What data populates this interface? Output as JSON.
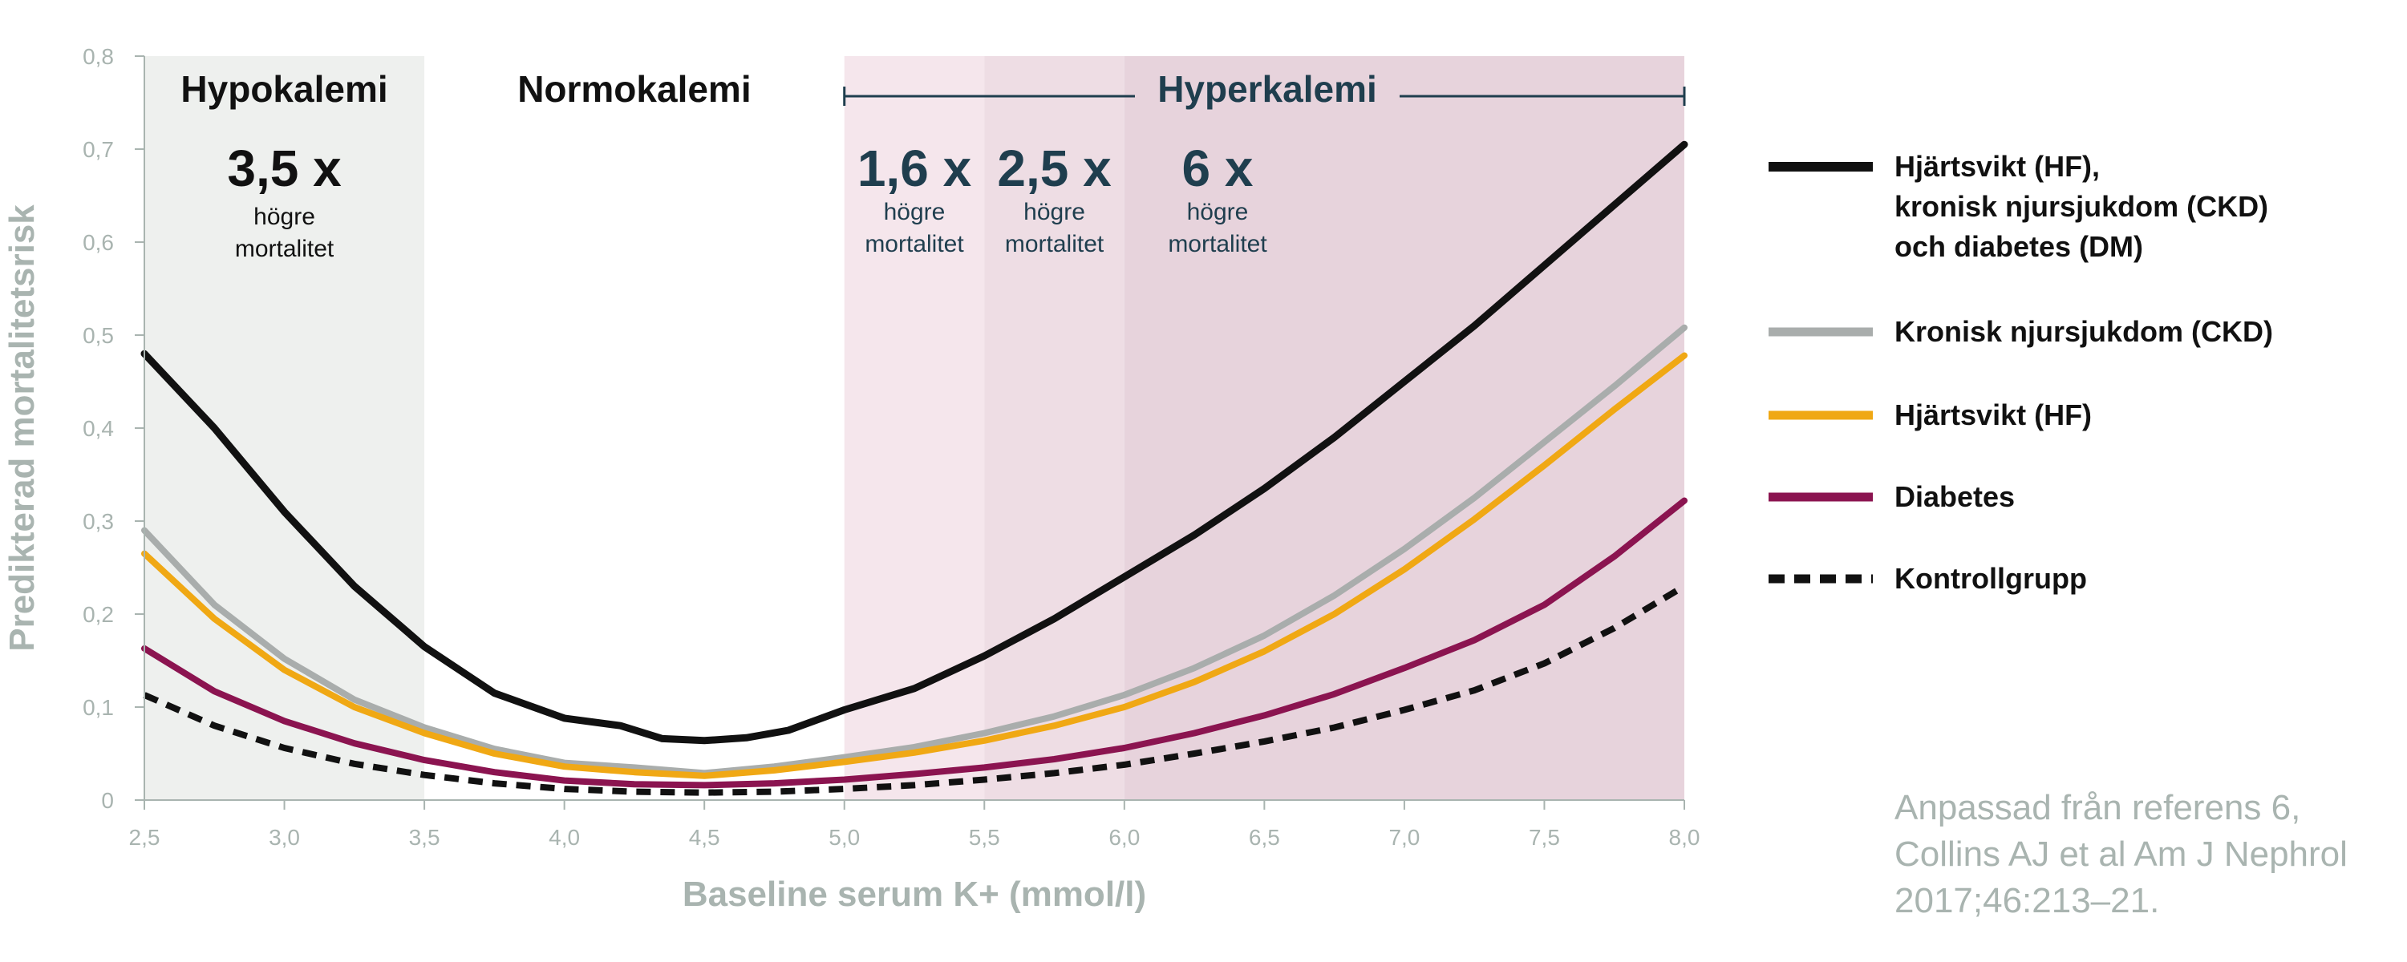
{
  "chart_data": {
    "type": "line",
    "xlabel": "Baseline serum K+ (mmol/l)",
    "ylabel": "Predikterad mortalitetsrisk",
    "xlim": [
      2.5,
      8.0
    ],
    "ylim": [
      0,
      0.8
    ],
    "x_ticks": [
      "2,5",
      "3,0",
      "3,5",
      "4,0",
      "4,5",
      "5,0",
      "5,5",
      "6,0",
      "6,5",
      "7,0",
      "7,5",
      "8,0"
    ],
    "y_ticks": [
      "0",
      "0,1",
      "0,2",
      "0,3",
      "0,4",
      "0,5",
      "0,6",
      "0,7",
      "0,8"
    ],
    "grid": false,
    "legend_position": "right",
    "zones": [
      {
        "label": "Hypokalemi",
        "from": 2.5,
        "to": 3.5,
        "color": "#eef0ee",
        "multiplier": "3,5 x",
        "note_line1": "högre",
        "note_line2": "mortalitet"
      },
      {
        "label": "Normokalemi",
        "from": 3.5,
        "to": 5.0
      }
    ],
    "hyper": {
      "label": "Hyperkalemi",
      "from": 5.0,
      "to": 8.0,
      "bands": [
        {
          "from": 5.0,
          "to": 5.5,
          "color": "#f5e6ec",
          "multiplier": "1,6 x",
          "note_line1": "högre",
          "note_line2": "mortalitet"
        },
        {
          "from": 5.5,
          "to": 6.0,
          "color": "#eedde4",
          "multiplier": "2,5 x",
          "note_line1": "högre",
          "note_line2": "mortalitet"
        },
        {
          "from": 6.0,
          "to": 8.0,
          "color": "#e7d3dc",
          "multiplier": "6 x",
          "note_line1": "högre",
          "note_line2": "mortalitet"
        }
      ]
    },
    "series": [
      {
        "name": "Hjärtsvikt (HF), kronisk njursjukdom (CKD) och diabetes (DM)",
        "legend_lines": [
          "Hjärtsvikt (HF),",
          "kronisk njursjukdom (CKD)",
          "och diabetes (DM)"
        ],
        "color": "#111111",
        "dashed": false,
        "points": [
          [
            2.5,
            0.48
          ],
          [
            2.75,
            0.4
          ],
          [
            3.0,
            0.31
          ],
          [
            3.25,
            0.23
          ],
          [
            3.5,
            0.165
          ],
          [
            3.75,
            0.115
          ],
          [
            4.0,
            0.088
          ],
          [
            4.2,
            0.08
          ],
          [
            4.35,
            0.066
          ],
          [
            4.5,
            0.064
          ],
          [
            4.65,
            0.067
          ],
          [
            4.8,
            0.075
          ],
          [
            5.0,
            0.097
          ],
          [
            5.25,
            0.12
          ],
          [
            5.5,
            0.155
          ],
          [
            5.75,
            0.195
          ],
          [
            6.0,
            0.24
          ],
          [
            6.25,
            0.285
          ],
          [
            6.5,
            0.335
          ],
          [
            6.75,
            0.39
          ],
          [
            7.0,
            0.45
          ],
          [
            7.25,
            0.51
          ],
          [
            7.5,
            0.575
          ],
          [
            7.75,
            0.64
          ],
          [
            8.0,
            0.705
          ]
        ]
      },
      {
        "name": "Kronisk njursjukdom (CKD)",
        "legend_lines": [
          "Kronisk njursjukdom (CKD)"
        ],
        "color": "#a9adac",
        "dashed": false,
        "points": [
          [
            2.5,
            0.29
          ],
          [
            2.75,
            0.21
          ],
          [
            3.0,
            0.152
          ],
          [
            3.25,
            0.108
          ],
          [
            3.5,
            0.078
          ],
          [
            3.75,
            0.055
          ],
          [
            4.0,
            0.04
          ],
          [
            4.25,
            0.035
          ],
          [
            4.5,
            0.029
          ],
          [
            4.75,
            0.036
          ],
          [
            5.0,
            0.046
          ],
          [
            5.25,
            0.057
          ],
          [
            5.5,
            0.072
          ],
          [
            5.75,
            0.09
          ],
          [
            6.0,
            0.113
          ],
          [
            6.25,
            0.142
          ],
          [
            6.5,
            0.177
          ],
          [
            6.75,
            0.22
          ],
          [
            7.0,
            0.27
          ],
          [
            7.25,
            0.325
          ],
          [
            7.5,
            0.385
          ],
          [
            7.75,
            0.445
          ],
          [
            8.0,
            0.508
          ]
        ]
      },
      {
        "name": "Hjärtsvikt (HF)",
        "legend_lines": [
          "Hjärtsvikt (HF)"
        ],
        "color": "#f0a814",
        "dashed": false,
        "points": [
          [
            2.5,
            0.265
          ],
          [
            2.75,
            0.195
          ],
          [
            3.0,
            0.14
          ],
          [
            3.25,
            0.1
          ],
          [
            3.5,
            0.072
          ],
          [
            3.75,
            0.05
          ],
          [
            4.0,
            0.036
          ],
          [
            4.25,
            0.03
          ],
          [
            4.5,
            0.026
          ],
          [
            4.75,
            0.032
          ],
          [
            5.0,
            0.041
          ],
          [
            5.25,
            0.051
          ],
          [
            5.5,
            0.064
          ],
          [
            5.75,
            0.08
          ],
          [
            6.0,
            0.1
          ],
          [
            6.25,
            0.127
          ],
          [
            6.5,
            0.16
          ],
          [
            6.75,
            0.2
          ],
          [
            7.0,
            0.248
          ],
          [
            7.25,
            0.302
          ],
          [
            7.5,
            0.36
          ],
          [
            7.75,
            0.42
          ],
          [
            8.0,
            0.478
          ]
        ]
      },
      {
        "name": "Diabetes",
        "legend_lines": [
          "Diabetes"
        ],
        "color": "#8b1450",
        "dashed": false,
        "points": [
          [
            2.5,
            0.163
          ],
          [
            2.75,
            0.117
          ],
          [
            3.0,
            0.085
          ],
          [
            3.25,
            0.061
          ],
          [
            3.5,
            0.043
          ],
          [
            3.75,
            0.03
          ],
          [
            4.0,
            0.021
          ],
          [
            4.25,
            0.017
          ],
          [
            4.5,
            0.016
          ],
          [
            4.75,
            0.018
          ],
          [
            5.0,
            0.022
          ],
          [
            5.25,
            0.028
          ],
          [
            5.5,
            0.035
          ],
          [
            5.75,
            0.044
          ],
          [
            6.0,
            0.056
          ],
          [
            6.25,
            0.072
          ],
          [
            6.5,
            0.091
          ],
          [
            6.75,
            0.114
          ],
          [
            7.0,
            0.142
          ],
          [
            7.25,
            0.172
          ],
          [
            7.5,
            0.21
          ],
          [
            7.75,
            0.262
          ],
          [
            8.0,
            0.322
          ]
        ]
      },
      {
        "name": "Kontrollgrupp",
        "legend_lines": [
          "Kontrollgrupp"
        ],
        "color": "#111111",
        "dashed": true,
        "points": [
          [
            2.5,
            0.113
          ],
          [
            2.75,
            0.08
          ],
          [
            3.0,
            0.056
          ],
          [
            3.25,
            0.039
          ],
          [
            3.5,
            0.027
          ],
          [
            3.75,
            0.018
          ],
          [
            4.0,
            0.012
          ],
          [
            4.25,
            0.009
          ],
          [
            4.5,
            0.008
          ],
          [
            4.75,
            0.009
          ],
          [
            5.0,
            0.012
          ],
          [
            5.25,
            0.016
          ],
          [
            5.5,
            0.022
          ],
          [
            5.75,
            0.029
          ],
          [
            6.0,
            0.038
          ],
          [
            6.25,
            0.05
          ],
          [
            6.5,
            0.063
          ],
          [
            6.75,
            0.078
          ],
          [
            7.0,
            0.097
          ],
          [
            7.25,
            0.118
          ],
          [
            7.5,
            0.147
          ],
          [
            7.75,
            0.185
          ],
          [
            8.0,
            0.23
          ]
        ]
      }
    ]
  },
  "source_note": [
    "Anpassad från referens 6,",
    "Collins AJ et al Am J Nephrol",
    "2017;46:213–21."
  ],
  "colors": {
    "axis": "#a9b4b0",
    "hyper_text": "#1f3e4e",
    "text": "#111111"
  }
}
